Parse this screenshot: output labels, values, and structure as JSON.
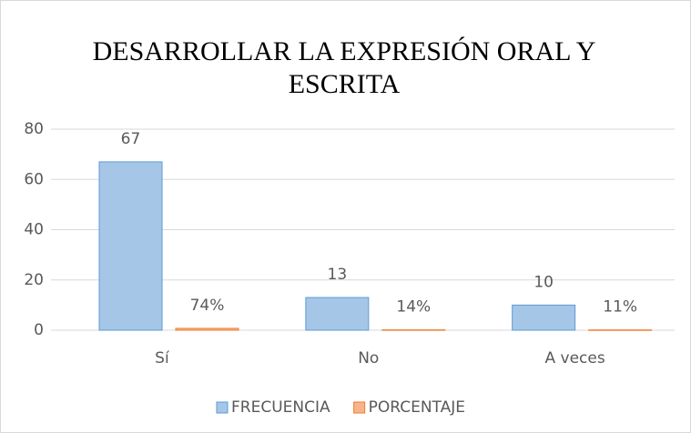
{
  "chart_data": {
    "type": "bar",
    "title": "DESARROLLAR LA EXPRESIÓN ORAL Y ESCRITA",
    "categories": [
      "Sí",
      "No",
      "A veces"
    ],
    "series": [
      {
        "name": "FRECUENCIA",
        "color": "#5b9bd5",
        "values": [
          67,
          13,
          10
        ]
      },
      {
        "name": "PORCENTAJE",
        "color": "#ed7d31",
        "values": [
          0.74,
          0.14,
          0.11
        ],
        "value_labels": [
          "74%",
          "14%",
          "11%"
        ]
      }
    ],
    "ylim": [
      0,
      80
    ],
    "yticks": [
      0,
      20,
      40,
      60,
      80
    ],
    "grid": true,
    "legend": "bottom"
  }
}
